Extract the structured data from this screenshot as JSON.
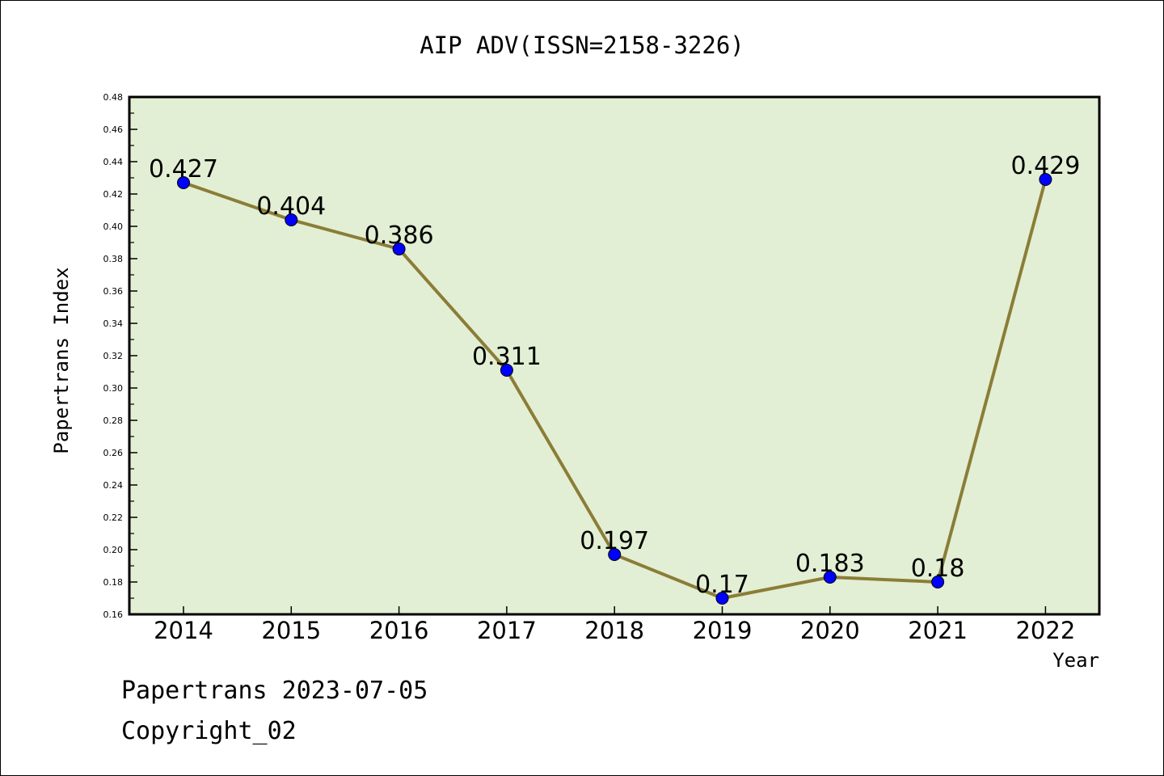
{
  "chart_data": {
    "type": "line",
    "title": "AIP ADV(ISSN=2158-3226)",
    "xlabel": "Year",
    "ylabel": "Papertrans Index",
    "categories": [
      "2014",
      "2015",
      "2016",
      "2017",
      "2018",
      "2019",
      "2020",
      "2021",
      "2022"
    ],
    "values": [
      0.427,
      0.404,
      0.386,
      0.311,
      0.197,
      0.17,
      0.183,
      0.18,
      0.429
    ],
    "data_labels": [
      "0.427",
      "0.404",
      "0.386",
      "0.311",
      "0.197",
      "0.17",
      "0.183",
      "0.18",
      "0.429"
    ],
    "ylim": [
      0.16,
      0.48
    ],
    "y_ticks": [
      "0.16",
      "0.18",
      "0.20",
      "0.22",
      "0.24",
      "0.26",
      "0.28",
      "0.30",
      "0.32",
      "0.34",
      "0.36",
      "0.38",
      "0.40",
      "0.42",
      "0.44",
      "0.46",
      "0.48"
    ],
    "grid": false,
    "legend": "none",
    "colors": {
      "plot_background": "#e2efd4",
      "line": "#8b7d37",
      "marker": "#0000ff"
    }
  },
  "footer": {
    "date_line": "Papertrans 2023-07-05",
    "copyright": "Copyright_02"
  }
}
